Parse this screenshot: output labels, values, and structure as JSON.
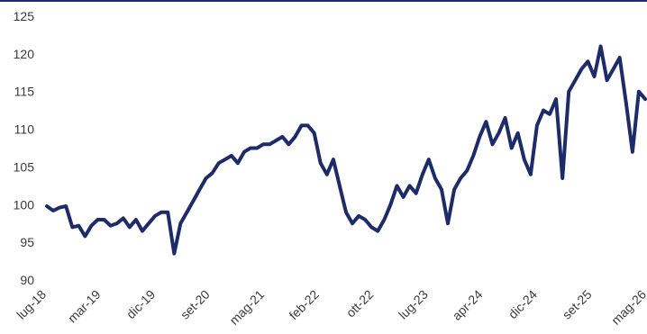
{
  "colors": {
    "line": "#1c2b6b",
    "frame": "#1c2b6b",
    "background": "#ffffff",
    "tick_text": "#3a3a3a"
  },
  "chart_data": {
    "type": "line",
    "title": "",
    "xlabel": "",
    "ylabel": "",
    "ylim": [
      90,
      125
    ],
    "yticks": [
      90,
      95,
      100,
      105,
      110,
      115,
      120,
      125
    ],
    "xticks": [
      "lug-18",
      "mar-19",
      "dic-19",
      "set-20",
      "mag-21",
      "feb-22",
      "ott-22",
      "lug-23",
      "apr-24",
      "dic-24",
      "set-25",
      "mag-26"
    ],
    "grid": false,
    "series": [
      {
        "x": [
          "2018-07",
          "2018-08",
          "2018-09",
          "2018-10",
          "2018-11",
          "2018-12",
          "2019-01",
          "2019-02",
          "2019-03",
          "2019-04",
          "2019-05",
          "2019-06",
          "2019-07",
          "2019-08",
          "2019-09",
          "2019-10",
          "2019-11",
          "2019-12",
          "2020-01",
          "2020-02",
          "2020-03",
          "2020-04",
          "2020-05",
          "2020-06",
          "2020-07",
          "2020-08",
          "2020-09",
          "2020-10",
          "2020-11",
          "2020-12",
          "2021-01",
          "2021-02",
          "2021-03",
          "2021-04",
          "2021-05",
          "2021-06",
          "2021-07",
          "2021-08",
          "2021-09",
          "2021-10",
          "2021-11",
          "2021-12",
          "2022-01",
          "2022-02",
          "2022-03",
          "2022-04",
          "2022-05",
          "2022-06",
          "2022-07",
          "2022-08",
          "2022-09",
          "2022-10",
          "2022-11",
          "2022-12",
          "2023-01",
          "2023-02",
          "2023-03",
          "2023-04",
          "2023-05",
          "2023-06",
          "2023-07",
          "2023-08",
          "2023-09",
          "2023-10",
          "2023-11",
          "2023-12",
          "2024-01",
          "2024-02",
          "2024-03",
          "2024-04",
          "2024-05",
          "2024-06",
          "2024-07",
          "2024-08",
          "2024-09",
          "2024-10",
          "2024-11",
          "2024-12",
          "2025-01",
          "2025-02",
          "2025-03",
          "2025-04",
          "2025-05",
          "2025-06",
          "2025-07",
          "2025-08",
          "2025-09",
          "2025-10",
          "2025-11",
          "2025-12",
          "2026-01",
          "2026-02",
          "2026-03",
          "2026-04",
          "2026-05"
        ],
        "values": [
          99.8,
          99.2,
          99.6,
          99.8,
          97.0,
          97.2,
          95.8,
          97.2,
          98.0,
          98.0,
          97.2,
          97.5,
          98.2,
          97.0,
          98.0,
          96.5,
          97.5,
          98.5,
          99.0,
          99.0,
          93.5,
          97.5,
          99.0,
          100.5,
          102.0,
          103.5,
          104.2,
          105.5,
          106.0,
          106.5,
          105.5,
          107.0,
          107.5,
          107.5,
          108.0,
          108.0,
          108.5,
          109.0,
          108.0,
          109.0,
          110.5,
          110.5,
          109.5,
          105.5,
          104.0,
          106.0,
          102.5,
          99.0,
          97.5,
          98.5,
          98.0,
          97.0,
          96.5,
          98.0,
          100.0,
          102.5,
          101.0,
          102.5,
          101.5,
          104.0,
          106.0,
          103.5,
          102.0,
          97.5,
          102.0,
          103.5,
          104.5,
          106.5,
          109.0,
          111.0,
          108.0,
          109.5,
          111.5,
          107.5,
          109.5,
          106.0,
          104.0,
          110.5,
          112.5,
          112.0,
          114.0,
          103.5,
          115.0,
          116.5,
          118.0,
          119.0,
          117.0,
          121.0,
          116.5,
          118.0,
          119.5,
          113.5,
          107.0,
          115.0,
          114.0
        ]
      }
    ]
  }
}
